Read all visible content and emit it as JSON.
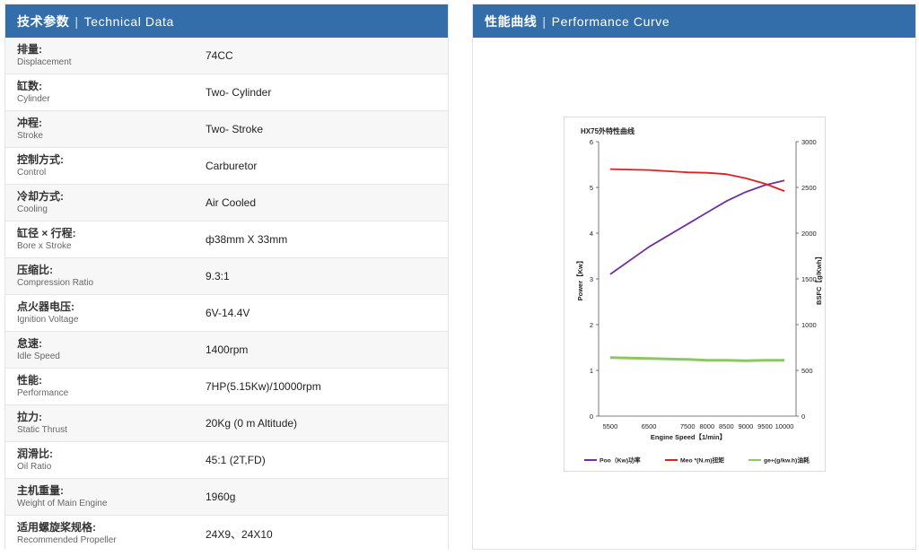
{
  "left": {
    "title_zh": "技术参数",
    "title_en": "Technical Data",
    "rows": [
      {
        "zh": "排量:",
        "en": "Displacement",
        "value": "74CC"
      },
      {
        "zh": "缸数:",
        "en": "Cylinder",
        "value": "Two- Cylinder"
      },
      {
        "zh": "冲程:",
        "en": "Stroke",
        "value": "Two- Stroke"
      },
      {
        "zh": "控制方式:",
        "en": "Control",
        "value": "Carburetor"
      },
      {
        "zh": "冷却方式:",
        "en": "Cooling",
        "value": "Air Cooled"
      },
      {
        "zh": "缸径 × 行程:",
        "en": "Bore x Stroke",
        "value": "ф38mm X 33mm"
      },
      {
        "zh": "压缩比:",
        "en": "Compression Ratio",
        "value": "9.3:1"
      },
      {
        "zh": "点火器电压:",
        "en": "Ignition Voltage",
        "value": "6V-14.4V"
      },
      {
        "zh": "怠速:",
        "en": "Idle Speed",
        "value": "1400rpm"
      },
      {
        "zh": "性能:",
        "en": "Performance",
        "value": "7HP(5.15Kw)/10000rpm"
      },
      {
        "zh": "拉力:",
        "en": "Static Thrust",
        "value": "20Kg (0 m Altitude)"
      },
      {
        "zh": "润滑比:",
        "en": "Oil Ratio",
        "value": "45:1 (2T,FD)"
      },
      {
        "zh": "主机重量:",
        "en": "Weight of Main Engine",
        "value": "1960g"
      },
      {
        "zh": "适用螺旋桨规格:",
        "en": "Recommended Propeller",
        "value": "24X9、24X10"
      }
    ]
  },
  "right": {
    "title_zh": "性能曲线",
    "title_en": "Performance Curve"
  },
  "colors": {
    "header": "#336eaa",
    "power": "#7030a0",
    "torque": "#e02020",
    "bsfc": "#8cc860"
  },
  "chart_data": {
    "type": "line",
    "title": "HX75外特性曲线",
    "xlabel": "Engine Speed【1/min】",
    "ylabel": "Power【Kw】",
    "y2label": "BSFC【g/Kwh】",
    "x": [
      5500,
      6500,
      7500,
      8500,
      9000,
      10000
    ],
    "x_ticks": [
      "5500",
      "6500",
      "7500",
      "8000",
      "8500",
      "9000",
      "9500",
      "10000"
    ],
    "x_tick_values": [
      5500,
      6500,
      7500,
      8000,
      8500,
      9000,
      9500,
      10000
    ],
    "xlim": [
      5200,
      10300
    ],
    "ylim": [
      0,
      6
    ],
    "y_ticks": [
      "0",
      "1",
      "2",
      "3",
      "4",
      "5",
      "6"
    ],
    "y2lim": [
      0,
      3000
    ],
    "y2_ticks": [
      "0",
      "500",
      "1000",
      "1500",
      "2000",
      "2500",
      "3000"
    ],
    "grid": false,
    "legend_position": "bottom",
    "series": [
      {
        "name": "Poo（Kw)功率",
        "axis": "left",
        "color_key": "power",
        "x": [
          5500,
          6500,
          7500,
          8000,
          8500,
          9000,
          9500,
          10000
        ],
        "values": [
          3.1,
          3.7,
          4.2,
          4.45,
          4.7,
          4.9,
          5.05,
          5.15
        ]
      },
      {
        "name": "Meo *(N.m)扭矩",
        "axis": "left",
        "color_key": "torque",
        "x": [
          5500,
          6500,
          7500,
          8000,
          8500,
          9000,
          9500,
          10000
        ],
        "values": [
          5.4,
          5.38,
          5.33,
          5.32,
          5.29,
          5.2,
          5.08,
          4.92
        ]
      },
      {
        "name": "ge+(g/kw.h)油耗",
        "axis": "right",
        "color_key": "bsfc",
        "x": [
          5500,
          6500,
          7500,
          8000,
          8500,
          9000,
          9500,
          10000
        ],
        "values": [
          640,
          630,
          620,
          610,
          610,
          605,
          610,
          610
        ]
      }
    ]
  }
}
